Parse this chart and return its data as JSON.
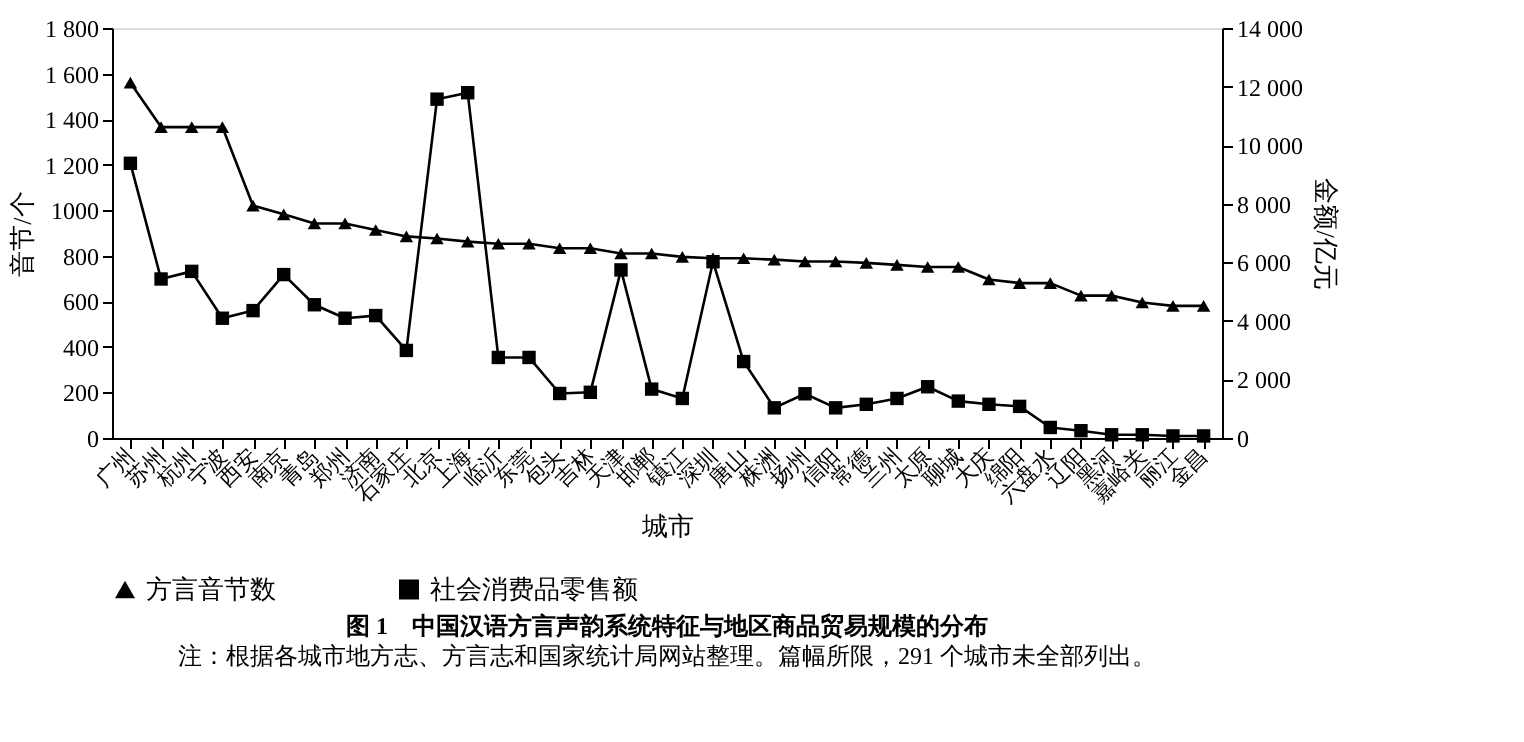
{
  "chart_data": {
    "type": "line",
    "title": "图 1　中国汉语方言声韵系统特征与地区商品贸易规模的分布",
    "annotations": [
      "注：根据各城市地方志、方言志和国家统计局网站整理。篇幅所限，291 个城市未全部列出。"
    ],
    "xlabel": "城市",
    "ylabel": "音节/个",
    "y2label": "金额/亿元",
    "categories": [
      "广州",
      "苏州",
      "杭州",
      "宁波",
      "西安",
      "南京",
      "青岛",
      "郑州",
      "济南",
      "石家庄",
      "北京",
      "上海",
      "临沂",
      "东莞",
      "包头",
      "吉林",
      "天津",
      "邯郸",
      "镇江",
      "深圳",
      "唐山",
      "株洲",
      "扬州",
      "信阳",
      "常德",
      "兰州",
      "太原",
      "聊城",
      "大庆",
      "绵阳",
      "六盘水",
      "辽阳",
      "黑河",
      "嘉峪关",
      "丽江",
      "金昌"
    ],
    "series": [
      {
        "name": "方言音节数",
        "color": "#000000",
        "marker": "triangle",
        "values": [
          1560,
          1365,
          1365,
          1365,
          1020,
          982,
          942,
          942,
          913,
          885,
          876,
          862,
          853,
          853,
          833,
          833,
          810,
          810,
          795,
          789,
          789,
          783,
          775,
          775,
          769,
          760,
          751,
          751,
          696,
          680,
          680,
          625,
          625,
          595,
          580,
          580
        ]
      },
      {
        "name": "社会消费品零售额",
        "color": "#000000",
        "marker": "square",
        "axis": "y2",
        "values": [
          9380,
          5430,
          5690,
          4090,
          4350,
          5580,
          4550,
          4090,
          4180,
          2990,
          11570,
          11790,
          2750,
          2750,
          1520,
          1560,
          5740,
          1670,
          1350,
          6020,
          2610,
          1030,
          1510,
          1030,
          1150,
          1350,
          1750,
          1260,
          1150,
          1080,
          360,
          250,
          110,
          110,
          70,
          70
        ]
      }
    ],
    "ylim": [
      0,
      1800
    ],
    "yticks": [
      0,
      200,
      400,
      600,
      800,
      1000,
      {
        "value": 1200,
        "label": "1 200"
      },
      {
        "value": 1400,
        "label": "1 400"
      },
      {
        "value": 1600,
        "label": "1 600"
      },
      {
        "value": 1800,
        "label": "1 800"
      }
    ],
    "y2lim": [
      0,
      14000
    ],
    "y2ticks": [
      0,
      {
        "value": 2000,
        "label": "2 000"
      },
      {
        "value": 4000,
        "label": "4 000"
      },
      {
        "value": 6000,
        "label": "6 000"
      },
      {
        "value": 8000,
        "label": "8 000"
      },
      {
        "value": 10000,
        "label": "10 000"
      },
      {
        "value": 12000,
        "label": "12 000"
      },
      {
        "value": 14000,
        "label": "14 000"
      }
    ],
    "grid": false,
    "legend": "bottom",
    "line_style": "solid"
  }
}
